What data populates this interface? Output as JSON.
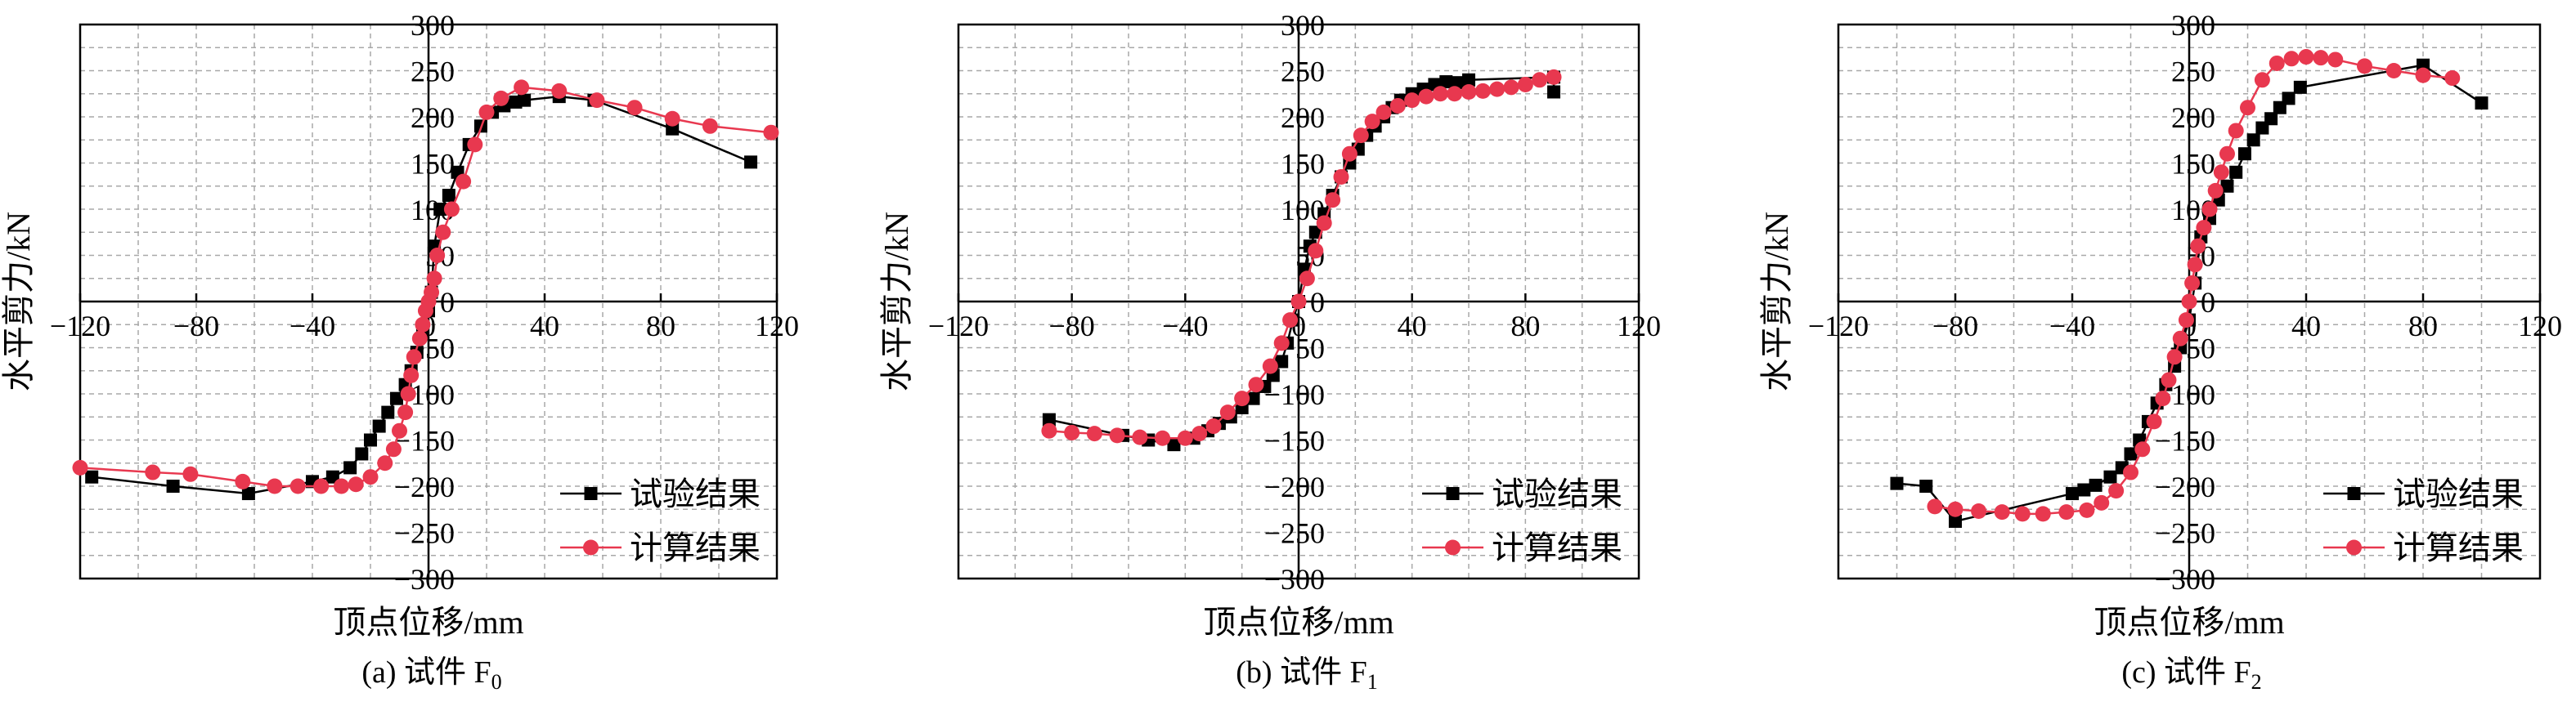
{
  "chart_data": [
    {
      "type": "scatter",
      "caption": "(a) 试件 F",
      "caption_sub": "0",
      "xlabel": "顶点位移/mm",
      "ylabel": "水平剪力/kN",
      "xlim": [
        -120,
        120
      ],
      "ylim": [
        -300,
        300
      ],
      "xticks": [
        -120,
        -80,
        -40,
        0,
        40,
        80,
        120
      ],
      "yticks": [
        -300,
        -250,
        -200,
        -150,
        -100,
        -50,
        0,
        50,
        100,
        150,
        200,
        250,
        300
      ],
      "tick_labels_x": [
        "−120",
        "−80",
        "−40",
        "0",
        "40",
        "80",
        "120"
      ],
      "tick_labels_y": [
        "−300",
        "−250",
        "−200",
        "−150",
        "−100",
        "−50",
        "0",
        "50",
        "100",
        "150",
        "200",
        "250",
        "300"
      ],
      "grid": true,
      "legend_position": "bottom-right",
      "series": [
        {
          "name": "试验结果",
          "marker": "square",
          "color": "#000000",
          "x": [
            -116,
            -88,
            -62,
            -40,
            -33,
            -27,
            -23,
            -20,
            -17,
            -14,
            -11,
            -8,
            -6,
            -4,
            -2,
            0,
            1,
            2,
            4,
            7,
            10,
            14,
            18,
            22,
            26,
            30,
            33,
            45,
            57,
            84,
            111
          ],
          "y": [
            -190,
            -200,
            -208,
            -195,
            -190,
            -180,
            -165,
            -150,
            -135,
            -120,
            -105,
            -90,
            -75,
            -55,
            -35,
            -10,
            10,
            60,
            100,
            115,
            140,
            170,
            190,
            205,
            212,
            216,
            218,
            222,
            218,
            187,
            151
          ]
        },
        {
          "name": "计算结果",
          "marker": "circle",
          "color": "#e8384f",
          "x": [
            -120,
            -95,
            -82,
            -64,
            -53,
            -45,
            -37,
            -30,
            -25,
            -20,
            -15,
            -12,
            -10,
            -8,
            -7,
            -6,
            -5,
            -3,
            -2,
            -1,
            0,
            1,
            2,
            3,
            5,
            8,
            12,
            16,
            20,
            25,
            32,
            45,
            58,
            71,
            84,
            97,
            118
          ],
          "y": [
            -180,
            -185,
            -187,
            -195,
            -200,
            -200,
            -200,
            -200,
            -198,
            -190,
            -175,
            -160,
            -140,
            -120,
            -100,
            -80,
            -60,
            -40,
            -25,
            -10,
            0,
            10,
            25,
            50,
            75,
            100,
            130,
            170,
            205,
            220,
            232,
            228,
            218,
            210,
            198,
            190,
            183
          ]
        }
      ]
    },
    {
      "type": "scatter",
      "caption": "(b) 试件 F",
      "caption_sub": "1",
      "xlabel": "顶点位移/mm",
      "ylabel": "水平剪力/kN",
      "xlim": [
        -120,
        120
      ],
      "ylim": [
        -300,
        300
      ],
      "xticks": [
        -120,
        -80,
        -40,
        0,
        40,
        80,
        120
      ],
      "yticks": [
        -300,
        -250,
        -200,
        -150,
        -100,
        -50,
        0,
        50,
        100,
        150,
        200,
        250,
        300
      ],
      "tick_labels_x": [
        "−120",
        "−80",
        "−40",
        "0",
        "40",
        "80",
        "120"
      ],
      "tick_labels_y": [
        "−300",
        "−250",
        "−200",
        "−150",
        "−100",
        "−50",
        "0",
        "50",
        "100",
        "150",
        "200",
        "250",
        "300"
      ],
      "grid": true,
      "legend_position": "bottom-right",
      "series": [
        {
          "name": "试验结果",
          "marker": "square",
          "color": "#000000",
          "x": [
            -88,
            -62,
            -53,
            -44,
            -37,
            -32,
            -28,
            -24,
            -20,
            -16,
            -12,
            -9,
            -6,
            -4,
            -2,
            0,
            2,
            4,
            6,
            9,
            12,
            15,
            18,
            21,
            24,
            27,
            30,
            33,
            36,
            40,
            44,
            48,
            52,
            56,
            60,
            90,
            90
          ],
          "y": [
            -128,
            -145,
            -150,
            -155,
            -148,
            -140,
            -132,
            -125,
            -115,
            -105,
            -92,
            -80,
            -65,
            -45,
            -20,
            0,
            35,
            60,
            75,
            95,
            115,
            135,
            150,
            165,
            180,
            190,
            200,
            210,
            218,
            225,
            230,
            235,
            238,
            237,
            240,
            243,
            227
          ]
        },
        {
          "name": "计算结果",
          "marker": "circle",
          "color": "#e8384f",
          "x": [
            -88,
            -80,
            -72,
            -64,
            -56,
            -48,
            -40,
            -35,
            -30,
            -25,
            -20,
            -15,
            -10,
            -6,
            -3,
            0,
            3,
            6,
            9,
            12,
            15,
            18,
            22,
            26,
            30,
            35,
            40,
            45,
            50,
            55,
            60,
            65,
            70,
            75,
            80,
            85,
            90
          ],
          "y": [
            -140,
            -142,
            -143,
            -145,
            -147,
            -148,
            -148,
            -143,
            -135,
            -120,
            -105,
            -90,
            -70,
            -45,
            -20,
            0,
            25,
            55,
            85,
            110,
            135,
            160,
            180,
            195,
            205,
            212,
            218,
            222,
            225,
            225,
            227,
            228,
            230,
            232,
            235,
            240,
            243
          ]
        }
      ]
    },
    {
      "type": "scatter",
      "caption": "(c) 试件 F",
      "caption_sub": "2",
      "xlabel": "顶点位移/mm",
      "ylabel": "水平剪力/kN",
      "xlim": [
        -120,
        120
      ],
      "ylim": [
        -300,
        300
      ],
      "xticks": [
        -120,
        -80,
        -40,
        0,
        40,
        80,
        120
      ],
      "yticks": [
        -300,
        -250,
        -200,
        -150,
        -100,
        -50,
        0,
        50,
        100,
        150,
        200,
        250,
        300
      ],
      "tick_labels_x": [
        "−120",
        "−80",
        "−40",
        "0",
        "40",
        "80",
        "120"
      ],
      "tick_labels_y": [
        "−300",
        "−250",
        "−200",
        "−150",
        "−100",
        "−50",
        "0",
        "50",
        "100",
        "150",
        "200",
        "250",
        "300"
      ],
      "grid": true,
      "legend_position": "bottom-right",
      "series": [
        {
          "name": "试验结果",
          "marker": "square",
          "color": "#000000",
          "x": [
            -100,
            -90,
            -80,
            -40,
            -36,
            -32,
            -27,
            -23,
            -20,
            -17,
            -14,
            -11,
            -8,
            -5,
            -3,
            0,
            2,
            4,
            7,
            10,
            13,
            16,
            19,
            22,
            25,
            28,
            31,
            34,
            38,
            80,
            100
          ],
          "y": [
            -197,
            -200,
            -238,
            -208,
            -204,
            -199,
            -190,
            -180,
            -165,
            -150,
            -130,
            -110,
            -90,
            -70,
            -50,
            -20,
            20,
            70,
            90,
            110,
            125,
            140,
            160,
            175,
            188,
            198,
            210,
            220,
            232,
            256,
            215
          ]
        },
        {
          "name": "计算结果",
          "marker": "circle",
          "color": "#e8384f",
          "x": [
            -87,
            -80,
            -72,
            -64,
            -57,
            -50,
            -42,
            -35,
            -30,
            -25,
            -20,
            -16,
            -12,
            -9,
            -7,
            -5,
            -3,
            -1,
            0,
            1,
            2,
            3,
            5,
            7,
            9,
            11,
            13,
            16,
            20,
            25,
            30,
            35,
            40,
            45,
            50,
            60,
            70,
            80,
            90
          ],
          "y": [
            -222,
            -225,
            -227,
            -228,
            -230,
            -230,
            -228,
            -226,
            -218,
            -205,
            -185,
            -160,
            -130,
            -105,
            -85,
            -60,
            -40,
            -20,
            0,
            20,
            40,
            60,
            80,
            100,
            120,
            140,
            160,
            185,
            210,
            240,
            258,
            263,
            265,
            264,
            262,
            255,
            250,
            245,
            242
          ]
        }
      ]
    }
  ]
}
